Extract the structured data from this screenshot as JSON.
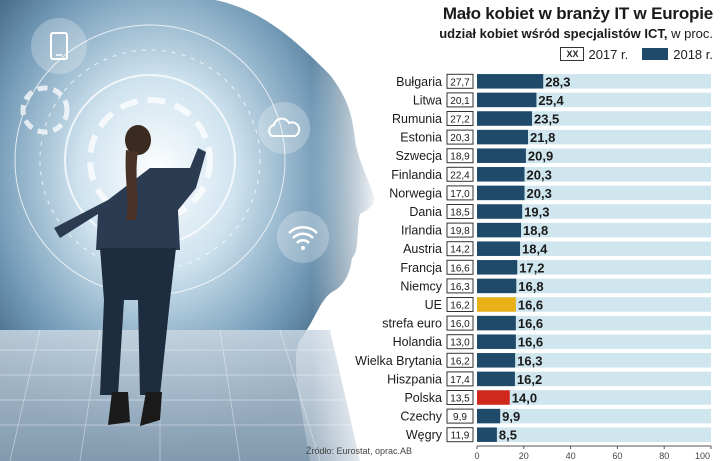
{
  "colors": {
    "bar_2018": "#1f4a69",
    "bar_highlight_eu": "#e8b117",
    "bar_highlight_pl": "#d0281c",
    "track": "#cfe6ee",
    "box_border": "#333333"
  },
  "icons": [
    "smartphone-icon",
    "cloud-icon",
    "wifi-icon"
  ],
  "legend": {
    "box_label": "XX",
    "label_2017": "2017 r.",
    "label_2018": "2018 r."
  },
  "source": "Źródło: Eurostat, oprac.AB",
  "chart_data": {
    "type": "bar",
    "orientation": "horizontal",
    "title": "Mało kobiet w branży IT w Europie",
    "subtitle_bold": "udział kobiet wśród specjalistów ICT,",
    "subtitle_rest": " w proc.",
    "categories": [
      "Bułgaria",
      "Litwa",
      "Rumunia",
      "Estonia",
      "Szwecja",
      "Finlandia",
      "Norwegia",
      "Dania",
      "Irlandia",
      "Austria",
      "Francja",
      "Niemcy",
      "UE",
      "strefa euro",
      "Holandia",
      "Wielka Brytania",
      "Hiszpania",
      "Polska",
      "Czechy",
      "Węgry"
    ],
    "series": [
      {
        "name": "2017 r.",
        "values": [
          27.7,
          20.1,
          27.2,
          20.3,
          18.9,
          22.4,
          17.0,
          18.5,
          19.8,
          14.2,
          16.6,
          16.3,
          16.2,
          16.0,
          13.0,
          16.2,
          17.4,
          13.5,
          9.9,
          11.9
        ],
        "labels": [
          "27,7",
          "20,1",
          "27,2",
          "20,3",
          "18,9",
          "22,4",
          "17,0",
          "18,5",
          "19,8",
          "14,2",
          "16,6",
          "16,3",
          "16,2",
          "16,0",
          "13,0",
          "16,2",
          "17,4",
          "13,5",
          "9,9",
          "11,9"
        ]
      },
      {
        "name": "2018 r.",
        "values": [
          28.3,
          25.4,
          23.5,
          21.8,
          20.9,
          20.3,
          20.3,
          19.3,
          18.8,
          18.4,
          17.2,
          16.8,
          16.6,
          16.6,
          16.6,
          16.3,
          16.2,
          14.0,
          9.9,
          8.5
        ],
        "labels": [
          "28,3",
          "25,4",
          "23,5",
          "21,8",
          "20,9",
          "20,3",
          "20,3",
          "19,3",
          "18,8",
          "18,4",
          "17,2",
          "16,8",
          "16,6",
          "16,6",
          "16,6",
          "16,3",
          "16,2",
          "14,0",
          "9,9",
          "8,5"
        ]
      }
    ],
    "highlights": {
      "UE": "#e8b117",
      "Polska": "#d0281c"
    },
    "xlim": [
      0,
      100
    ],
    "xticks": [
      0,
      20,
      40,
      60,
      80,
      100
    ]
  }
}
